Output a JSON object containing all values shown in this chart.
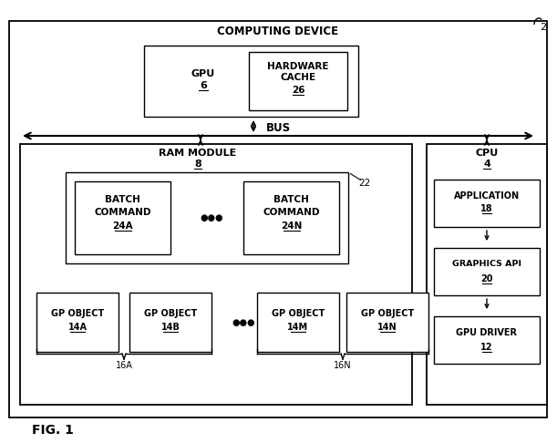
{
  "fig_label": "FIG. 1",
  "ref_num": "2",
  "computing_device": "COMPUTING DEVICE",
  "bus": "BUS",
  "ram_module": "RAM MODULE",
  "ram_num": "8",
  "cpu": "CPU",
  "cpu_num": "4",
  "gpu": "GPU",
  "gpu_num": "6",
  "hw_cache1": "HARDWARE",
  "hw_cache2": "CACHE",
  "hw_cache_num": "26",
  "batch_cmd_a1": "BATCH",
  "batch_cmd_a2": "COMMAND",
  "batch_cmd_a_num": "24A",
  "batch_cmd_n1": "BATCH",
  "batch_cmd_n2": "COMMAND",
  "batch_cmd_n_num": "24N",
  "label22": "22",
  "gp_obj_line1": "GP OBJECT",
  "gp_obj_14a": "14A",
  "gp_obj_14b": "14B",
  "gp_obj_14m": "14M",
  "gp_obj_14n": "14N",
  "group_16a": "16A",
  "group_16n": "16N",
  "app1": "APPLICATION",
  "app_num": "18",
  "gfx_api": "GRAPHICS API",
  "gfx_num": "20",
  "gpu_driver": "GPU DRIVER",
  "driver_num": "12",
  "bg": "#ffffff",
  "black": "#000000"
}
